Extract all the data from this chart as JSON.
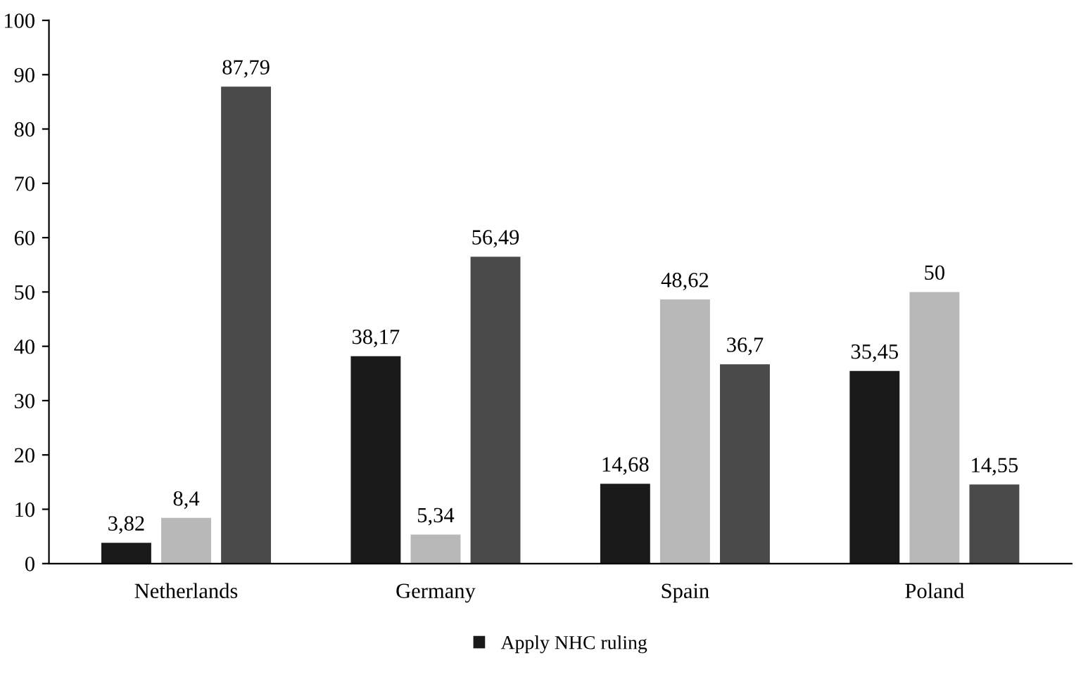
{
  "chart_data": {
    "type": "bar",
    "categories": [
      "Netherlands",
      "Germany",
      "Spain",
      "Poland"
    ],
    "series": [
      {
        "name": "Apply NHC ruling",
        "color": "#1a1a1a",
        "values": [
          3.82,
          38.17,
          14.68,
          35.45
        ],
        "value_labels": [
          "3,82",
          "38,17",
          "14,68",
          "35,45"
        ]
      },
      {
        "color": "#b8b8b8",
        "values": [
          8.4,
          5.34,
          48.62,
          50
        ],
        "value_labels": [
          "8,4",
          "5,34",
          "48,62",
          "50"
        ]
      },
      {
        "color": "#4a4a4a",
        "values": [
          87.79,
          56.49,
          36.7,
          14.55
        ],
        "value_labels": [
          "87,79",
          "56,49",
          "36,7",
          "14,55"
        ]
      }
    ],
    "ylim": [
      0,
      100
    ],
    "yticks": [
      0,
      10,
      20,
      30,
      40,
      50,
      60,
      70,
      80,
      90,
      100
    ],
    "grid": false,
    "legend": "bottom"
  }
}
